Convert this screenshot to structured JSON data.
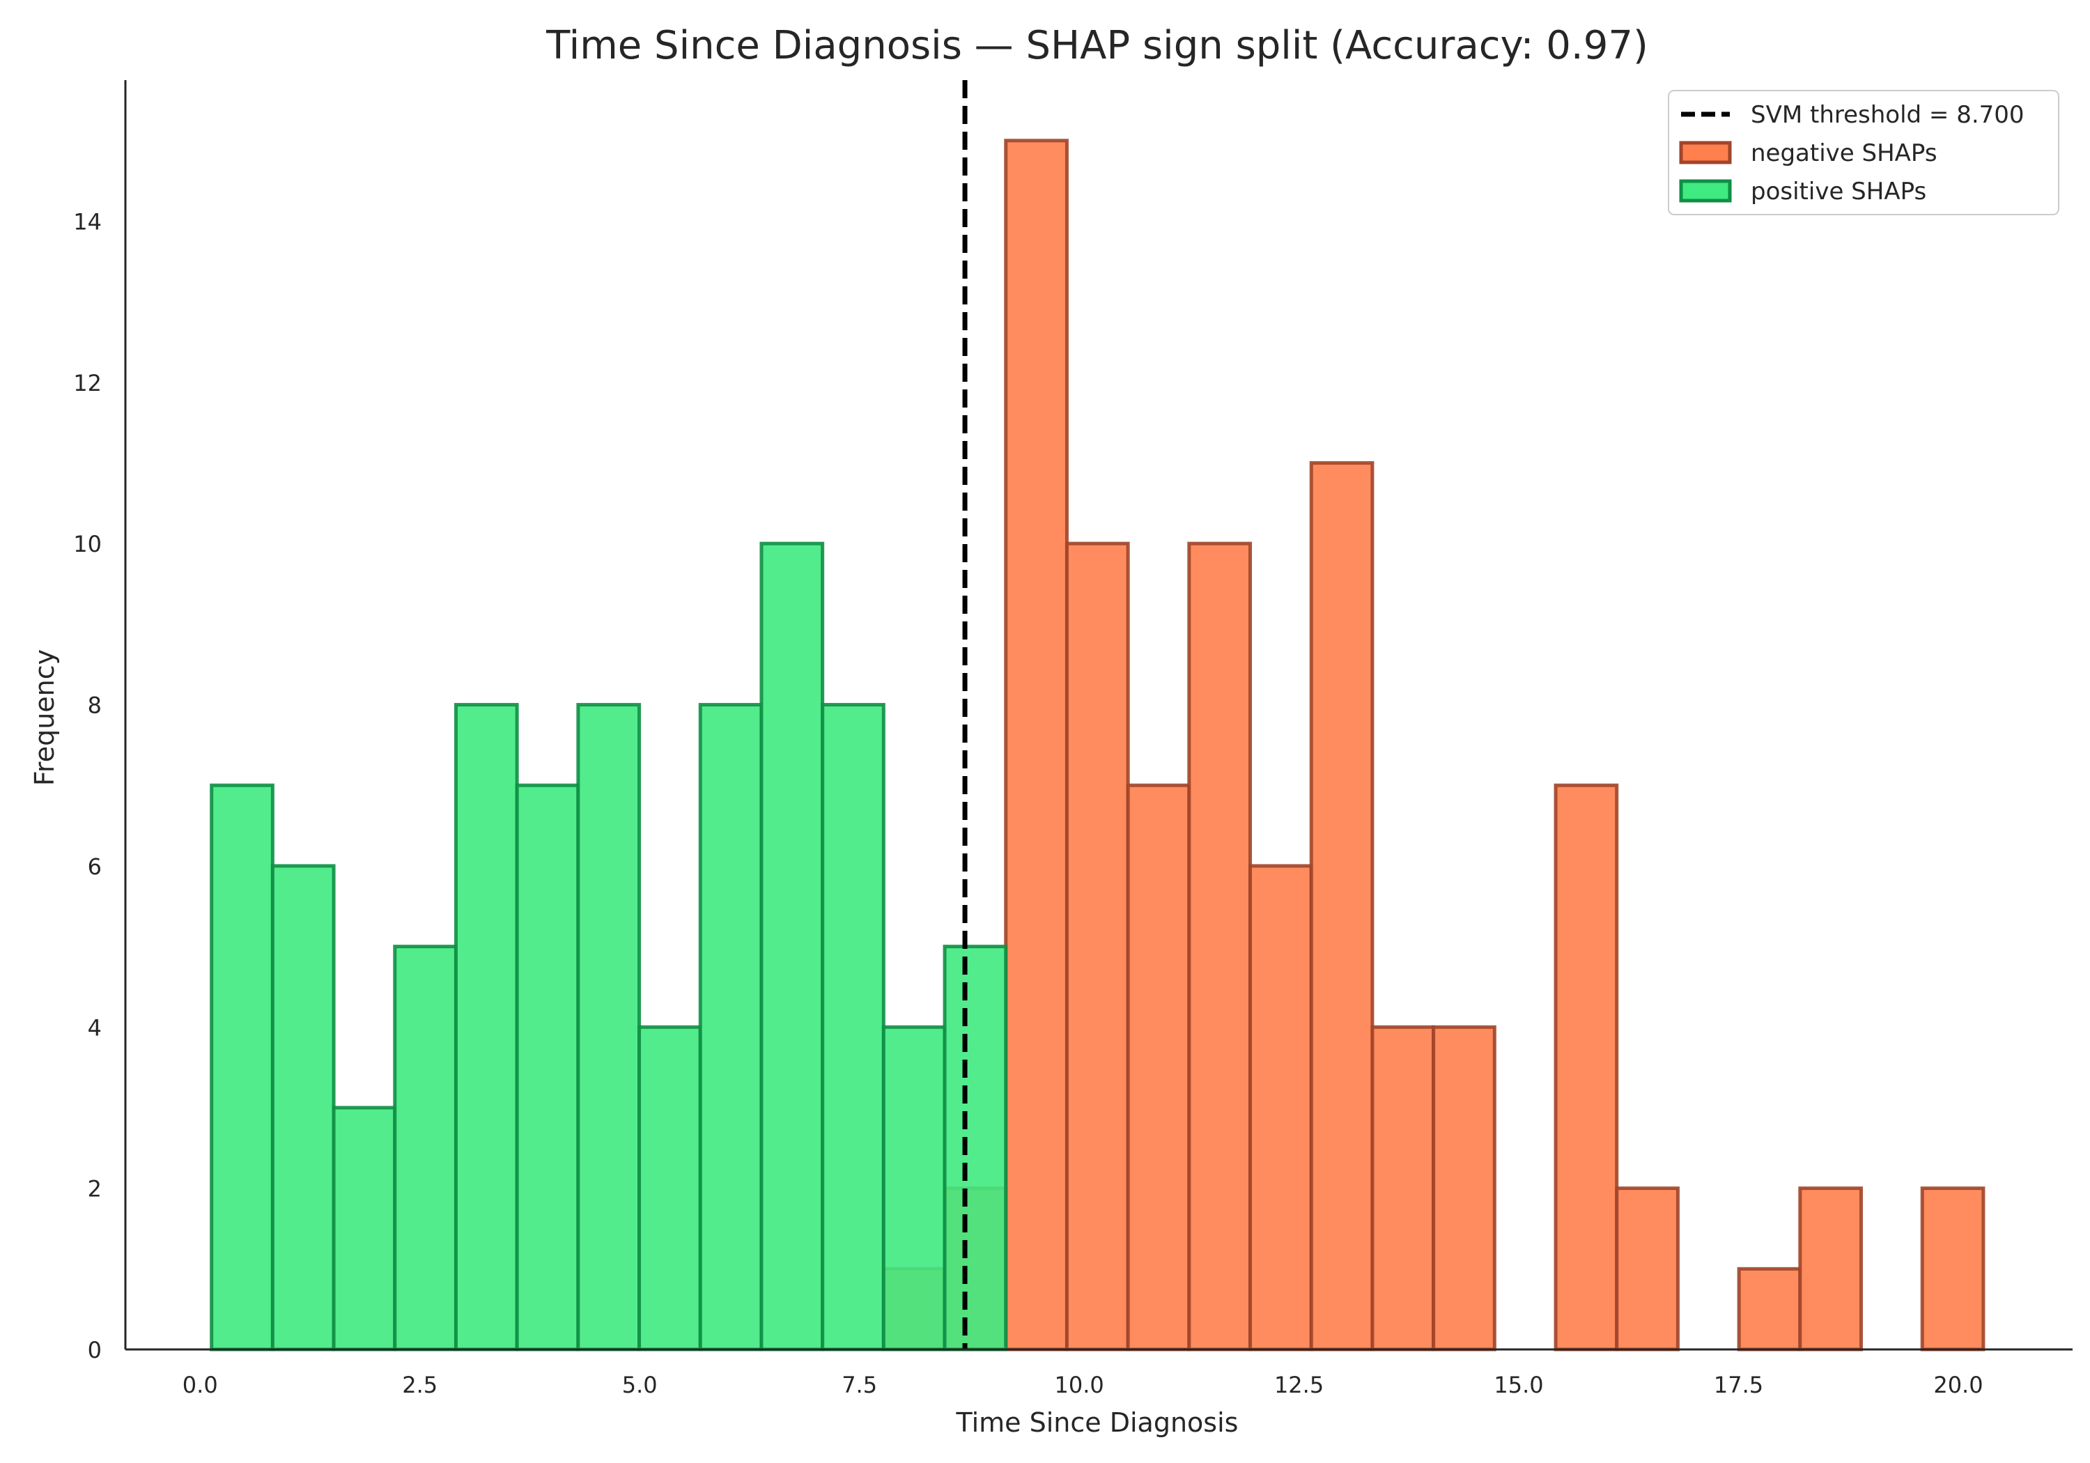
{
  "chart_data": {
    "type": "bar",
    "title": "Time Since Diagnosis — SHAP sign split (Accuracy: 0.97)",
    "xlabel": "Time Since Diagnosis",
    "ylabel": "Frequency",
    "xlim": [
      -0.85,
      21.3
    ],
    "ylim": [
      0,
      15.75
    ],
    "x_ticks": [
      0.0,
      2.5,
      5.0,
      7.5,
      10.0,
      12.5,
      15.0,
      17.5,
      20.0
    ],
    "x_tick_labels": [
      "0.0",
      "2.5",
      "5.0",
      "7.5",
      "10.0",
      "12.5",
      "15.0",
      "17.5",
      "20.0"
    ],
    "y_ticks": [
      0,
      2,
      4,
      6,
      8,
      10,
      12,
      14
    ],
    "y_tick_labels": [
      "0",
      "2",
      "4",
      "6",
      "8",
      "10",
      "12",
      "14"
    ],
    "bin_edges": [
      0.13,
      0.825,
      1.52,
      2.215,
      2.91,
      3.605,
      4.3,
      4.995,
      5.69,
      6.385,
      7.08,
      7.775,
      8.47,
      9.165,
      9.86,
      10.555,
      11.25,
      11.945,
      12.64,
      13.335,
      14.03,
      14.725,
      15.42,
      16.115,
      16.81,
      17.505,
      18.2,
      18.895,
      19.59,
      20.285
    ],
    "grid": false,
    "legend_position": "top-right",
    "threshold": {
      "value": 8.7,
      "label": "SVM threshold = 8.700",
      "color": "#000000",
      "style": "dashed"
    },
    "series": [
      {
        "name": "negative SHAPs",
        "fill": "#ff7f4d",
        "stroke": "#a0452a",
        "values": [
          0,
          0,
          0,
          0,
          0,
          0,
          0,
          0,
          0,
          0,
          0,
          1,
          2,
          15,
          10,
          7,
          10,
          6,
          11,
          4,
          4,
          0,
          7,
          2,
          0,
          1,
          2,
          0,
          2
        ]
      },
      {
        "name": "positive SHAPs",
        "fill": "#3fea80",
        "stroke": "#0f8f45",
        "values": [
          7,
          6,
          3,
          5,
          8,
          7,
          8,
          4,
          8,
          10,
          8,
          4,
          5,
          0,
          0,
          0,
          0,
          0,
          0,
          0,
          0,
          0,
          0,
          0,
          0,
          0,
          0,
          0,
          0
        ]
      }
    ]
  }
}
